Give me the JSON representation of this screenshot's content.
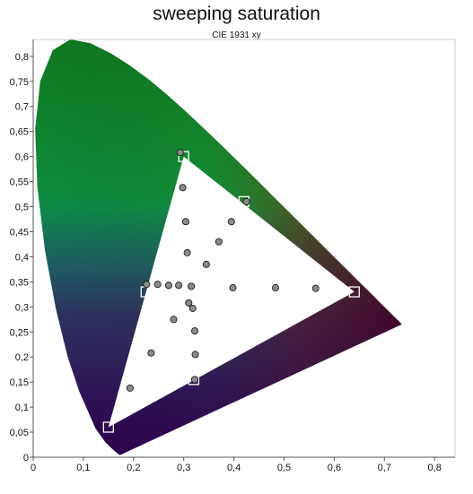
{
  "chart_data": {
    "type": "scatter",
    "title": "sweeping saturation",
    "subtitle": "CIE 1931 xy",
    "xlabel": "",
    "ylabel": "",
    "xlim": [
      0,
      0.83
    ],
    "ylim": [
      0,
      0.84
    ],
    "grid": false,
    "x_ticks": [
      "0",
      "0,1",
      "0,2",
      "0,3",
      "0,4",
      "0,5",
      "0,6",
      "0,7",
      "0,8"
    ],
    "y_ticks": [
      "0",
      "0,05",
      "0,1",
      "0,15",
      "0,2",
      "0,25",
      "0,3",
      "0,35",
      "0,4",
      "0,45",
      "0,5",
      "0,55",
      "0,6",
      "0,65",
      "0,7",
      "0,75",
      "0,8"
    ],
    "gamut_triangle": [
      [
        0.64,
        0.33
      ],
      [
        0.3,
        0.6
      ],
      [
        0.15,
        0.06
      ]
    ],
    "white_point": [
      0.3127,
      0.329
    ],
    "series": [
      {
        "marker": "square",
        "points": [
          [
            0.64,
            0.33
          ],
          [
            0.567,
            0.331
          ],
          [
            0.489,
            0.33
          ],
          [
            0.403,
            0.33
          ],
          [
            0.3,
            0.6
          ],
          [
            0.302,
            0.545
          ],
          [
            0.305,
            0.473
          ],
          [
            0.308,
            0.398
          ],
          [
            0.15,
            0.06
          ],
          [
            0.18,
            0.12
          ],
          [
            0.225,
            0.188
          ],
          [
            0.27,
            0.26
          ],
          [
            0.42,
            0.51
          ],
          [
            0.37,
            0.43
          ],
          [
            0.33,
            0.37
          ],
          [
            0.225,
            0.33
          ],
          [
            0.245,
            0.33
          ],
          [
            0.27,
            0.33
          ],
          [
            0.3,
            0.33
          ],
          [
            0.315,
            0.28
          ],
          [
            0.318,
            0.24
          ],
          [
            0.318,
            0.195
          ],
          [
            0.32,
            0.155
          ],
          [
            0.313,
            0.329
          ]
        ]
      },
      {
        "marker": "circle",
        "points": [
          [
            0.563,
            0.337
          ],
          [
            0.483,
            0.338
          ],
          [
            0.398,
            0.338
          ],
          [
            0.29,
            0.343
          ],
          [
            0.293,
            0.608
          ],
          [
            0.298,
            0.538
          ],
          [
            0.304,
            0.47
          ],
          [
            0.307,
            0.408
          ],
          [
            0.193,
            0.138
          ],
          [
            0.235,
            0.208
          ],
          [
            0.28,
            0.275
          ],
          [
            0.425,
            0.51
          ],
          [
            0.395,
            0.47
          ],
          [
            0.37,
            0.43
          ],
          [
            0.345,
            0.385
          ],
          [
            0.226,
            0.345
          ],
          [
            0.248,
            0.345
          ],
          [
            0.27,
            0.343
          ],
          [
            0.31,
            0.308
          ],
          [
            0.318,
            0.297
          ],
          [
            0.322,
            0.252
          ],
          [
            0.323,
            0.205
          ],
          [
            0.322,
            0.155
          ],
          [
            0.315,
            0.341
          ]
        ]
      }
    ]
  }
}
